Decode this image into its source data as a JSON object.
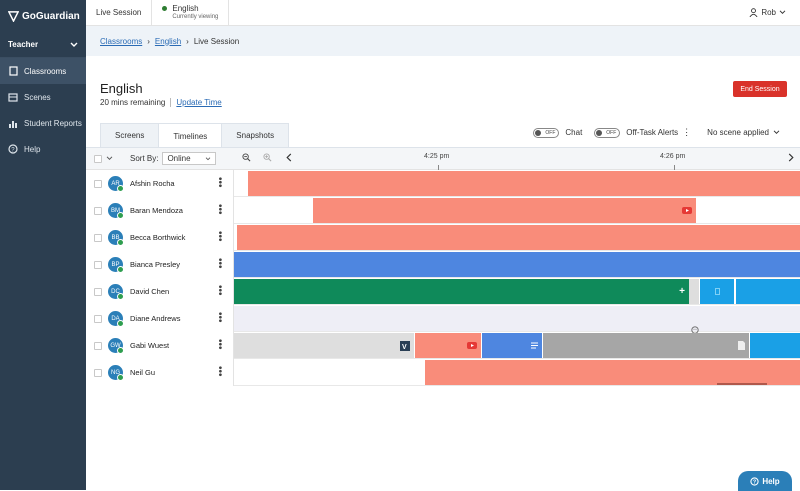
{
  "brand": "GoGuardian",
  "sidebar": {
    "role": "Teacher",
    "items": [
      {
        "label": "Classrooms",
        "icon": "book-icon"
      },
      {
        "label": "Scenes",
        "icon": "scenes-icon"
      },
      {
        "label": "Student Reports",
        "icon": "bar-chart-icon"
      },
      {
        "label": "Help",
        "icon": "help-circle-icon"
      }
    ]
  },
  "topbar": {
    "live_session": "Live Session",
    "class_name": "English",
    "class_status": "Currently viewing",
    "user": "Rob"
  },
  "breadcrumb": {
    "items": [
      "Classrooms",
      "English",
      "Live Session"
    ]
  },
  "session": {
    "title": "English",
    "remaining": "20 mins remaining",
    "update_time": "Update Time",
    "end_session": "End Session"
  },
  "tabs": [
    "Screens",
    "Timelines",
    "Snapshots"
  ],
  "toggles": {
    "chat_state": "OFF",
    "chat_label": "Chat",
    "offtask_state": "OFF",
    "offtask_label": "Off-Task Alerts",
    "scene": "No scene applied"
  },
  "controls": {
    "sort_label": "Sort By:",
    "sort_value": "Online",
    "times": [
      "4:25 pm",
      "4:26 pm"
    ]
  },
  "colors": {
    "salmon": "#f98c7a",
    "blue": "#4e86e0",
    "green": "#0f8a5a",
    "lightblue": "#1aa0e6",
    "gray": "#a6a6a6",
    "lightgray": "#dedede",
    "lavender": "#eeeef6"
  },
  "students": [
    {
      "initials": "AR",
      "name": "Afshin Rocha"
    },
    {
      "initials": "BM",
      "name": "Baran Mendoza"
    },
    {
      "initials": "BB",
      "name": "Becca Borthwick"
    },
    {
      "initials": "BP",
      "name": "Bianca Presley"
    },
    {
      "initials": "DC",
      "name": "David Chen"
    },
    {
      "initials": "DA",
      "name": "Diane Andrews"
    },
    {
      "initials": "GW",
      "name": "Gabi Wuest"
    },
    {
      "initials": "NG",
      "name": "Neil Gu"
    }
  ],
  "help_button": "Help"
}
